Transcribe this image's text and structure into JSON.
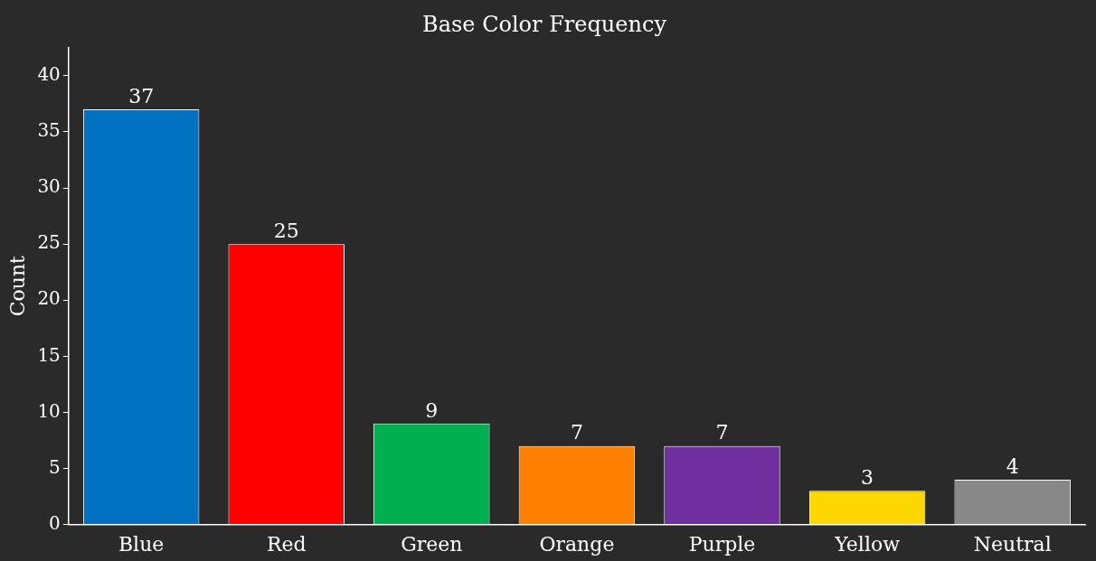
{
  "chart_data": {
    "type": "bar",
    "title": "Base Color Frequency",
    "ylabel": "Count",
    "categories": [
      "Blue",
      "Red",
      "Green",
      "Orange",
      "Purple",
      "Yellow",
      "Neutral"
    ],
    "values": [
      37,
      25,
      9,
      7,
      7,
      3,
      4
    ],
    "colors": [
      "#0070c0",
      "#ff0000",
      "#00b050",
      "#ff7f00",
      "#7030a0",
      "#ffd700",
      "#888888"
    ],
    "ylim": [
      0,
      42.5
    ],
    "yticks": [
      0,
      5,
      10,
      15,
      20,
      25,
      30,
      35,
      40
    ],
    "data_labels": true,
    "grid": false,
    "legend": false
  }
}
